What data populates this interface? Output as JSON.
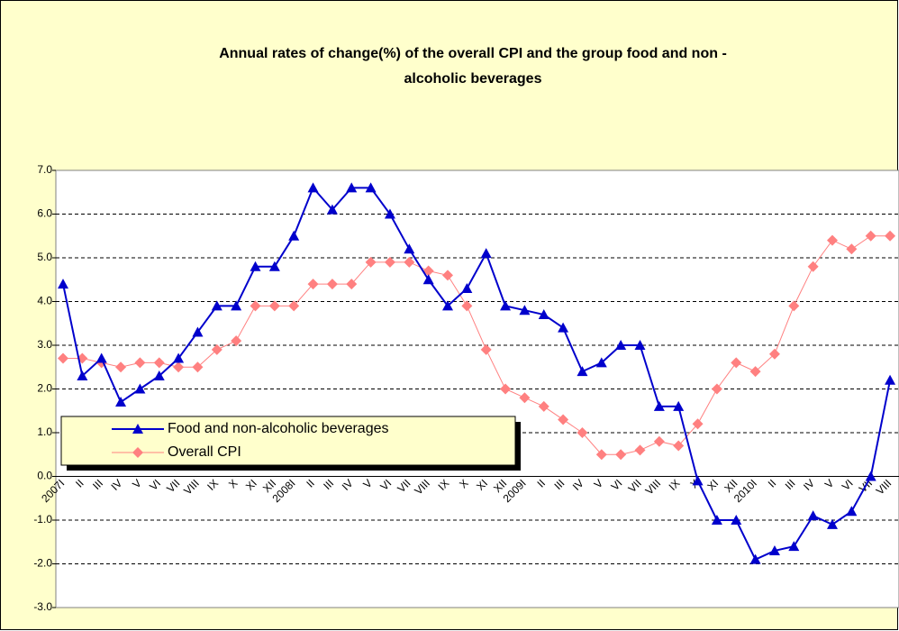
{
  "chart_data": {
    "type": "line",
    "title": "Annual rates of change(%) of the overall CPI and  the group food and non -",
    "title_line2": "alcoholic beverages",
    "categories": [
      "2007I",
      "II",
      "III",
      "IV",
      "V",
      "VI",
      "VII",
      "VIII",
      "IX",
      "X",
      "XI",
      "XII",
      "2008I",
      "II",
      "III",
      "IV",
      "V",
      "VI",
      "VII",
      "VIII",
      "IX",
      "X",
      "XI",
      "XII",
      "2009I",
      "II",
      "III",
      "IV",
      "V",
      "VI",
      "VII",
      "VIII",
      "IX",
      "X",
      "XI",
      "XII",
      "2010I",
      "II",
      "III",
      "IV",
      "V",
      "VI",
      "VII",
      "VIII"
    ],
    "series": [
      {
        "name": "Food and non-alcoholic beverages",
        "color": "#0000cc",
        "marker": "triangle",
        "values": [
          4.4,
          2.3,
          2.7,
          1.7,
          2.0,
          2.3,
          2.7,
          3.3,
          3.9,
          3.9,
          4.8,
          4.8,
          5.5,
          6.6,
          6.1,
          6.6,
          6.6,
          6.0,
          5.2,
          4.5,
          3.9,
          4.3,
          5.1,
          3.9,
          3.8,
          3.7,
          3.4,
          2.4,
          2.6,
          3.0,
          3.0,
          1.6,
          1.6,
          -0.1,
          -1.0,
          -1.0,
          -1.9,
          -1.7,
          -1.6,
          -0.9,
          -1.1,
          -0.8,
          0.0,
          2.2
        ]
      },
      {
        "name": "Overall CPI",
        "color": "#ff8080",
        "marker": "diamond",
        "values": [
          2.7,
          2.7,
          2.6,
          2.5,
          2.6,
          2.6,
          2.5,
          2.5,
          2.9,
          3.1,
          3.9,
          3.9,
          3.9,
          4.4,
          4.4,
          4.4,
          4.9,
          4.9,
          4.9,
          4.7,
          4.6,
          3.9,
          2.9,
          2.0,
          1.8,
          1.6,
          1.3,
          1.0,
          0.5,
          0.5,
          0.6,
          0.8,
          0.7,
          1.2,
          2.0,
          2.6,
          2.4,
          2.8,
          3.9,
          4.8,
          5.4,
          5.2,
          5.5,
          5.5
        ]
      }
    ],
    "ylim": [
      -3,
      7
    ],
    "yticks": [
      {
        "value": -3,
        "label": "-3.0"
      },
      {
        "value": -2,
        "label": "-2.0"
      },
      {
        "value": -1,
        "label": "-1.0"
      },
      {
        "value": 0,
        "label": "0.0"
      },
      {
        "value": 1,
        "label": "1.0"
      },
      {
        "value": 2,
        "label": "2.0"
      },
      {
        "value": 3,
        "label": "3.0"
      },
      {
        "value": 4,
        "label": "4.0"
      },
      {
        "value": 5,
        "label": "5.0"
      },
      {
        "value": 6,
        "label": "6.0"
      },
      {
        "value": 7,
        "label": "7.0"
      }
    ],
    "grid": true
  }
}
